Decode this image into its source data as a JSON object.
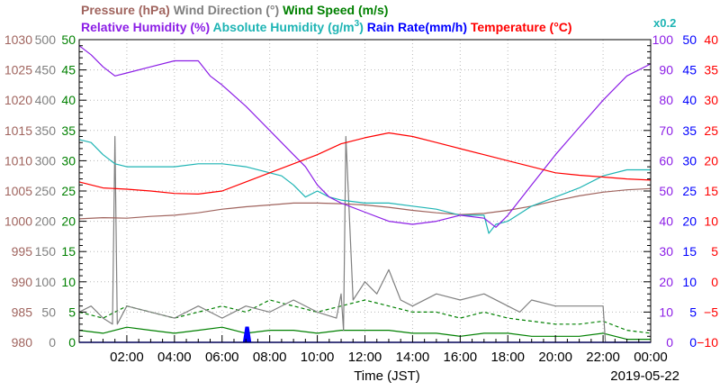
{
  "legend": {
    "row1": [
      {
        "text": "Pressure (hPa)",
        "color": "#a0645e"
      },
      {
        "text": "Wind Direction (°)",
        "color": "#808080"
      },
      {
        "text": "Wind Speed (m/s)",
        "color": "#008000"
      }
    ],
    "row2": [
      {
        "text": "Relative Humidity (%)",
        "color": "#8c1ee6"
      },
      {
        "text": "Absolute Humidity (g/m",
        "sup": "3",
        "tail": ")",
        "color": "#1eb4b4"
      },
      {
        "text": "Rain Rate(mm/h)",
        "color": "#0000ff"
      },
      {
        "text": "Temperature (°C)",
        "color": "#ff0000"
      }
    ],
    "scale_note": "x0.2"
  },
  "axes": {
    "x_title": "Time (JST)",
    "date": "2019-05-22",
    "x_ticks": [
      "02:00",
      "04:00",
      "06:00",
      "08:00",
      "10:00",
      "12:00",
      "14:00",
      "16:00",
      "18:00",
      "20:00",
      "22:00",
      "00:00"
    ],
    "x_tick_hours": [
      2,
      4,
      6,
      8,
      10,
      12,
      14,
      16,
      18,
      20,
      22,
      24
    ],
    "left": [
      {
        "name": "pressure",
        "color": "#a0645e",
        "ticks": [
          "980",
          "985",
          "990",
          "995",
          "1000",
          "1005",
          "1010",
          "1015",
          "1020",
          "1025",
          "1030"
        ]
      },
      {
        "name": "wind-direction",
        "color": "#808080",
        "ticks": [
          "0",
          "50",
          "100",
          "150",
          "200",
          "250",
          "300",
          "350",
          "400",
          "450",
          "500"
        ]
      },
      {
        "name": "wind-speed",
        "color": "#008000",
        "ticks": [
          "0",
          "5",
          "10",
          "15",
          "20",
          "25",
          "30",
          "35",
          "40",
          "45",
          "50"
        ]
      }
    ],
    "right": [
      {
        "name": "humidity",
        "color": "#8c1ee6",
        "ticks": [
          "0",
          "10",
          "20",
          "30",
          "40",
          "50",
          "60",
          "70",
          "80",
          "90",
          "100"
        ]
      },
      {
        "name": "rain-rate",
        "color": "#0000ff",
        "ticks": [
          "0",
          "5",
          "10",
          "15",
          "20",
          "25",
          "30",
          "35",
          "40",
          "45",
          "50"
        ]
      },
      {
        "name": "temperature",
        "color": "#ff0000",
        "ticks": [
          "−10",
          "−5",
          "0",
          "5",
          "10",
          "15",
          "20",
          "25",
          "30",
          "35",
          "40"
        ]
      }
    ]
  },
  "chart_data": {
    "type": "line",
    "x_unit": "hours since 00:00 JST",
    "xlim": [
      0,
      24
    ],
    "shared_ylim_note": "all series share a 10-division vertical grid; each series value given in its own units",
    "series": [
      {
        "name": "Temperature (°C)",
        "axis": "temperature",
        "ylim": [
          -10,
          40
        ],
        "color": "#ff0000",
        "x": [
          0,
          1,
          2,
          3,
          4,
          5,
          6,
          7,
          8,
          9,
          10,
          11,
          12,
          13,
          14,
          15,
          16,
          17,
          18,
          19,
          20,
          21,
          22,
          23,
          24
        ],
        "y": [
          16.5,
          15.5,
          15.3,
          15,
          14.6,
          14.5,
          15,
          16.5,
          18,
          19.5,
          21,
          22.8,
          23.8,
          24.6,
          24,
          23,
          22,
          21,
          20,
          19,
          18,
          17.6,
          17.3,
          17,
          16.8
        ]
      },
      {
        "name": "Relative Humidity (%)",
        "axis": "humidity",
        "ylim": [
          0,
          100
        ],
        "color": "#8c1ee6",
        "x": [
          0,
          0.5,
          1,
          1.5,
          2,
          3,
          4,
          5,
          5.5,
          6,
          7,
          8,
          9,
          9.5,
          10,
          10.5,
          11,
          12,
          13,
          14,
          15,
          16,
          17,
          17.5,
          18,
          19,
          20,
          21,
          22,
          23,
          24
        ],
        "y": [
          98,
          95,
          91,
          88,
          89,
          91,
          93,
          93,
          88,
          85,
          78,
          70,
          62,
          58,
          52,
          48,
          46,
          43,
          40,
          39,
          40,
          42,
          41,
          38,
          42,
          52,
          62,
          71,
          80,
          88,
          92
        ]
      },
      {
        "name": "Absolute Humidity (g/m3) x0.2",
        "axis": "humidity",
        "ylim": [
          0,
          100
        ],
        "color": "#1eb4b4",
        "x": [
          0,
          0.5,
          1,
          1.5,
          2,
          3,
          4,
          5,
          6,
          7,
          8,
          8.5,
          9,
          9.5,
          10,
          10.5,
          11,
          12,
          13,
          14,
          15,
          16,
          17,
          17.2,
          17.5,
          18,
          19,
          20,
          21,
          22,
          23,
          24
        ],
        "y": [
          67,
          66,
          62,
          59,
          58,
          58,
          58,
          59,
          59,
          58,
          56,
          55,
          52,
          48,
          50,
          48,
          47,
          46,
          46,
          45,
          44,
          42,
          42,
          36,
          39,
          40,
          45,
          48,
          51,
          55,
          57,
          57
        ]
      },
      {
        "name": "Pressure (hPa)",
        "axis": "pressure",
        "ylim": [
          980,
          1030
        ],
        "color": "#a0645e",
        "x": [
          0,
          1,
          2,
          3,
          4,
          5,
          6,
          7,
          8,
          9,
          10,
          11,
          12,
          13,
          14,
          15,
          16,
          17,
          18,
          19,
          20,
          21,
          22,
          23,
          24
        ],
        "y": [
          1000.4,
          1000.6,
          1000.5,
          1000.8,
          1001,
          1001.4,
          1002,
          1002.4,
          1002.7,
          1003,
          1003,
          1002.9,
          1002.7,
          1002.3,
          1001.8,
          1001.4,
          1001.1,
          1001.3,
          1001.8,
          1002.5,
          1003.4,
          1004.2,
          1004.8,
          1005.2,
          1005.4
        ]
      },
      {
        "name": "Wind Direction (°)",
        "axis": "wind-direction",
        "ylim": [
          0,
          500
        ],
        "color": "#808080",
        "x": [
          0,
          0.5,
          1,
          1.4,
          1.5,
          1.6,
          2,
          3,
          4,
          5,
          6,
          7,
          8,
          9,
          10,
          10.8,
          11,
          11.1,
          11.2,
          11.5,
          12,
          12.5,
          13,
          13.5,
          14,
          15,
          16,
          17,
          18,
          18.5,
          19,
          20,
          21,
          22,
          22.1,
          23,
          24
        ],
        "y": [
          50,
          60,
          40,
          30,
          340,
          30,
          60,
          50,
          40,
          60,
          40,
          60,
          50,
          70,
          50,
          40,
          80,
          20,
          340,
          70,
          100,
          80,
          120,
          70,
          60,
          80,
          70,
          80,
          60,
          50,
          70,
          60,
          60,
          60,
          0,
          0,
          0
        ]
      },
      {
        "name": "Wind Speed (m/s)",
        "axis": "wind-speed",
        "ylim": [
          0,
          50
        ],
        "color": "#008000",
        "x": [
          0,
          1,
          2,
          3,
          4,
          5,
          6,
          7,
          8,
          9,
          10,
          11,
          12,
          13,
          14,
          15,
          16,
          17,
          18,
          19,
          20,
          21,
          22,
          23,
          24
        ],
        "y": [
          2,
          1.5,
          2.5,
          2,
          1.5,
          2,
          2.5,
          1.5,
          2,
          2,
          1.5,
          2,
          2,
          2,
          1.5,
          1.5,
          1,
          1.5,
          1.5,
          1,
          1,
          1,
          1.5,
          0.5,
          0.5
        ]
      },
      {
        "name": "Wind Speed gust (m/s)",
        "axis": "wind-speed",
        "ylim": [
          0,
          50
        ],
        "color": "#008000",
        "style": "dashed",
        "x": [
          0,
          1,
          2,
          3,
          4,
          5,
          6,
          7,
          8,
          9,
          10,
          11,
          12,
          13,
          14,
          15,
          16,
          17,
          18,
          19,
          20,
          21,
          22,
          23,
          24
        ],
        "y": [
          5,
          4,
          6,
          5,
          4,
          5,
          6,
          5,
          7,
          6,
          5,
          6,
          7,
          6,
          5,
          5,
          4,
          5,
          4,
          3.5,
          3,
          3,
          3.5,
          2,
          1.5
        ]
      },
      {
        "name": "Rain Rate(mm/h)",
        "axis": "rain-rate",
        "ylim": [
          0,
          50
        ],
        "color": "#0000ff",
        "x": [
          0,
          6.9,
          7,
          7.1,
          7.2,
          24
        ],
        "y": [
          0,
          0,
          2.5,
          2.5,
          0,
          0
        ]
      }
    ]
  }
}
